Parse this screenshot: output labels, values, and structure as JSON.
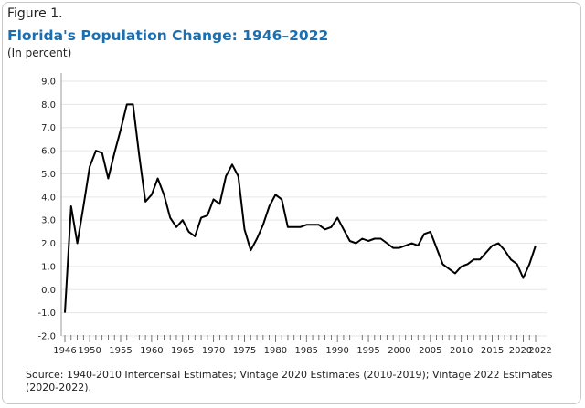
{
  "figure_label": "Figure 1.",
  "source": "Source: 1940-2010 Intercensal Estimates; Vintage 2020 Estimates (2010-2019); Vintage 2022 Estimates (2020-2022).",
  "colors": {
    "title": "#1b6fb0",
    "line": "#000000",
    "grid": "#e6e6e6"
  },
  "chart_data": {
    "type": "line",
    "title": "Florida's Population Change: 1946–2022",
    "subtitle": "(In percent)",
    "xlabel": "",
    "ylabel": "",
    "ylim": [
      -2.0,
      9.0
    ],
    "xlim": [
      1946,
      2022
    ],
    "grid": true,
    "y_ticks": [
      "9.0",
      "8.0",
      "7.0",
      "6.0",
      "5.0",
      "4.0",
      "3.0",
      "2.0",
      "1.0",
      "0.0",
      "-1.0",
      "-2.0"
    ],
    "x_ticks": [
      "1946",
      "1950",
      "1955",
      "1960",
      "1965",
      "1970",
      "1975",
      "1980",
      "1985",
      "1990",
      "1995",
      "2000",
      "2005",
      "2010",
      "2015",
      "2020",
      "2022"
    ],
    "x": [
      1946,
      1947,
      1948,
      1949,
      1950,
      1951,
      1952,
      1953,
      1954,
      1955,
      1956,
      1957,
      1958,
      1959,
      1960,
      1961,
      1962,
      1963,
      1964,
      1965,
      1966,
      1967,
      1968,
      1969,
      1970,
      1971,
      1972,
      1973,
      1974,
      1975,
      1976,
      1977,
      1978,
      1979,
      1980,
      1981,
      1982,
      1983,
      1984,
      1985,
      1986,
      1987,
      1988,
      1989,
      1990,
      1991,
      1992,
      1993,
      1994,
      1995,
      1996,
      1997,
      1998,
      1999,
      2000,
      2001,
      2002,
      2003,
      2004,
      2005,
      2006,
      2007,
      2008,
      2009,
      2010,
      2011,
      2012,
      2013,
      2014,
      2015,
      2016,
      2017,
      2018,
      2019,
      2020,
      2021,
      2022
    ],
    "values": [
      -1.0,
      3.6,
      2.0,
      3.6,
      5.3,
      6.0,
      5.9,
      4.8,
      5.9,
      6.9,
      8.0,
      8.0,
      5.8,
      3.8,
      4.1,
      4.8,
      4.1,
      3.1,
      2.7,
      3.0,
      2.5,
      2.3,
      3.1,
      3.2,
      3.9,
      3.7,
      4.9,
      5.4,
      4.9,
      2.6,
      1.7,
      2.2,
      2.8,
      3.6,
      4.1,
      3.9,
      2.7,
      2.7,
      2.7,
      2.8,
      2.8,
      2.8,
      2.6,
      2.7,
      3.1,
      2.6,
      2.1,
      2.0,
      2.2,
      2.1,
      2.2,
      2.2,
      2.0,
      1.8,
      1.8,
      1.9,
      2.0,
      1.9,
      2.4,
      2.5,
      1.8,
      1.1,
      0.9,
      0.7,
      1.0,
      1.1,
      1.3,
      1.3,
      1.6,
      1.9,
      2.0,
      1.7,
      1.3,
      1.1,
      0.5,
      1.1,
      1.9
    ]
  }
}
